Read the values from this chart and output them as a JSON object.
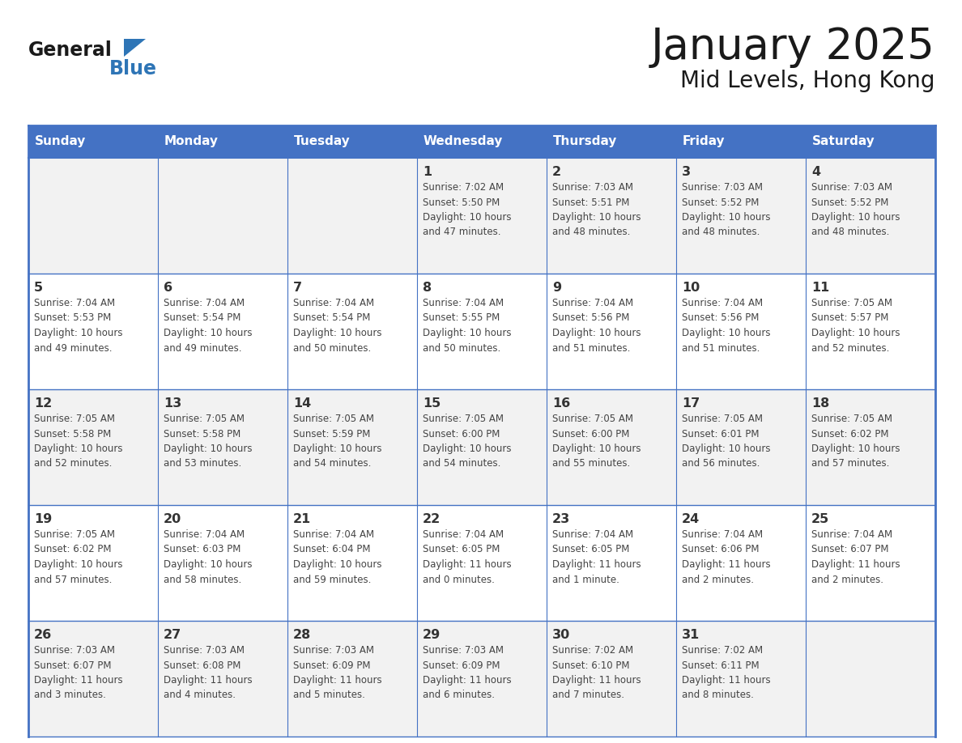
{
  "title": "January 2025",
  "subtitle": "Mid Levels, Hong Kong",
  "days_of_week": [
    "Sunday",
    "Monday",
    "Tuesday",
    "Wednesday",
    "Thursday",
    "Friday",
    "Saturday"
  ],
  "header_bg": "#4472C4",
  "header_text": "#FFFFFF",
  "row_bg_light": "#F2F2F2",
  "row_bg_white": "#FFFFFF",
  "cell_border": "#4472C4",
  "day_number_color": "#333333",
  "text_color": "#444444",
  "title_color": "#1a1a1a",
  "logo_general_color": "#1a1a1a",
  "logo_blue_color": "#2E75B6",
  "calendar_data": [
    [
      {
        "day": null,
        "info": null
      },
      {
        "day": null,
        "info": null
      },
      {
        "day": null,
        "info": null
      },
      {
        "day": 1,
        "info": "Sunrise: 7:02 AM\nSunset: 5:50 PM\nDaylight: 10 hours\nand 47 minutes."
      },
      {
        "day": 2,
        "info": "Sunrise: 7:03 AM\nSunset: 5:51 PM\nDaylight: 10 hours\nand 48 minutes."
      },
      {
        "day": 3,
        "info": "Sunrise: 7:03 AM\nSunset: 5:52 PM\nDaylight: 10 hours\nand 48 minutes."
      },
      {
        "day": 4,
        "info": "Sunrise: 7:03 AM\nSunset: 5:52 PM\nDaylight: 10 hours\nand 48 minutes."
      }
    ],
    [
      {
        "day": 5,
        "info": "Sunrise: 7:04 AM\nSunset: 5:53 PM\nDaylight: 10 hours\nand 49 minutes."
      },
      {
        "day": 6,
        "info": "Sunrise: 7:04 AM\nSunset: 5:54 PM\nDaylight: 10 hours\nand 49 minutes."
      },
      {
        "day": 7,
        "info": "Sunrise: 7:04 AM\nSunset: 5:54 PM\nDaylight: 10 hours\nand 50 minutes."
      },
      {
        "day": 8,
        "info": "Sunrise: 7:04 AM\nSunset: 5:55 PM\nDaylight: 10 hours\nand 50 minutes."
      },
      {
        "day": 9,
        "info": "Sunrise: 7:04 AM\nSunset: 5:56 PM\nDaylight: 10 hours\nand 51 minutes."
      },
      {
        "day": 10,
        "info": "Sunrise: 7:04 AM\nSunset: 5:56 PM\nDaylight: 10 hours\nand 51 minutes."
      },
      {
        "day": 11,
        "info": "Sunrise: 7:05 AM\nSunset: 5:57 PM\nDaylight: 10 hours\nand 52 minutes."
      }
    ],
    [
      {
        "day": 12,
        "info": "Sunrise: 7:05 AM\nSunset: 5:58 PM\nDaylight: 10 hours\nand 52 minutes."
      },
      {
        "day": 13,
        "info": "Sunrise: 7:05 AM\nSunset: 5:58 PM\nDaylight: 10 hours\nand 53 minutes."
      },
      {
        "day": 14,
        "info": "Sunrise: 7:05 AM\nSunset: 5:59 PM\nDaylight: 10 hours\nand 54 minutes."
      },
      {
        "day": 15,
        "info": "Sunrise: 7:05 AM\nSunset: 6:00 PM\nDaylight: 10 hours\nand 54 minutes."
      },
      {
        "day": 16,
        "info": "Sunrise: 7:05 AM\nSunset: 6:00 PM\nDaylight: 10 hours\nand 55 minutes."
      },
      {
        "day": 17,
        "info": "Sunrise: 7:05 AM\nSunset: 6:01 PM\nDaylight: 10 hours\nand 56 minutes."
      },
      {
        "day": 18,
        "info": "Sunrise: 7:05 AM\nSunset: 6:02 PM\nDaylight: 10 hours\nand 57 minutes."
      }
    ],
    [
      {
        "day": 19,
        "info": "Sunrise: 7:05 AM\nSunset: 6:02 PM\nDaylight: 10 hours\nand 57 minutes."
      },
      {
        "day": 20,
        "info": "Sunrise: 7:04 AM\nSunset: 6:03 PM\nDaylight: 10 hours\nand 58 minutes."
      },
      {
        "day": 21,
        "info": "Sunrise: 7:04 AM\nSunset: 6:04 PM\nDaylight: 10 hours\nand 59 minutes."
      },
      {
        "day": 22,
        "info": "Sunrise: 7:04 AM\nSunset: 6:05 PM\nDaylight: 11 hours\nand 0 minutes."
      },
      {
        "day": 23,
        "info": "Sunrise: 7:04 AM\nSunset: 6:05 PM\nDaylight: 11 hours\nand 1 minute."
      },
      {
        "day": 24,
        "info": "Sunrise: 7:04 AM\nSunset: 6:06 PM\nDaylight: 11 hours\nand 2 minutes."
      },
      {
        "day": 25,
        "info": "Sunrise: 7:04 AM\nSunset: 6:07 PM\nDaylight: 11 hours\nand 2 minutes."
      }
    ],
    [
      {
        "day": 26,
        "info": "Sunrise: 7:03 AM\nSunset: 6:07 PM\nDaylight: 11 hours\nand 3 minutes."
      },
      {
        "day": 27,
        "info": "Sunrise: 7:03 AM\nSunset: 6:08 PM\nDaylight: 11 hours\nand 4 minutes."
      },
      {
        "day": 28,
        "info": "Sunrise: 7:03 AM\nSunset: 6:09 PM\nDaylight: 11 hours\nand 5 minutes."
      },
      {
        "day": 29,
        "info": "Sunrise: 7:03 AM\nSunset: 6:09 PM\nDaylight: 11 hours\nand 6 minutes."
      },
      {
        "day": 30,
        "info": "Sunrise: 7:02 AM\nSunset: 6:10 PM\nDaylight: 11 hours\nand 7 minutes."
      },
      {
        "day": 31,
        "info": "Sunrise: 7:02 AM\nSunset: 6:11 PM\nDaylight: 11 hours\nand 8 minutes."
      },
      {
        "day": null,
        "info": null
      }
    ]
  ]
}
